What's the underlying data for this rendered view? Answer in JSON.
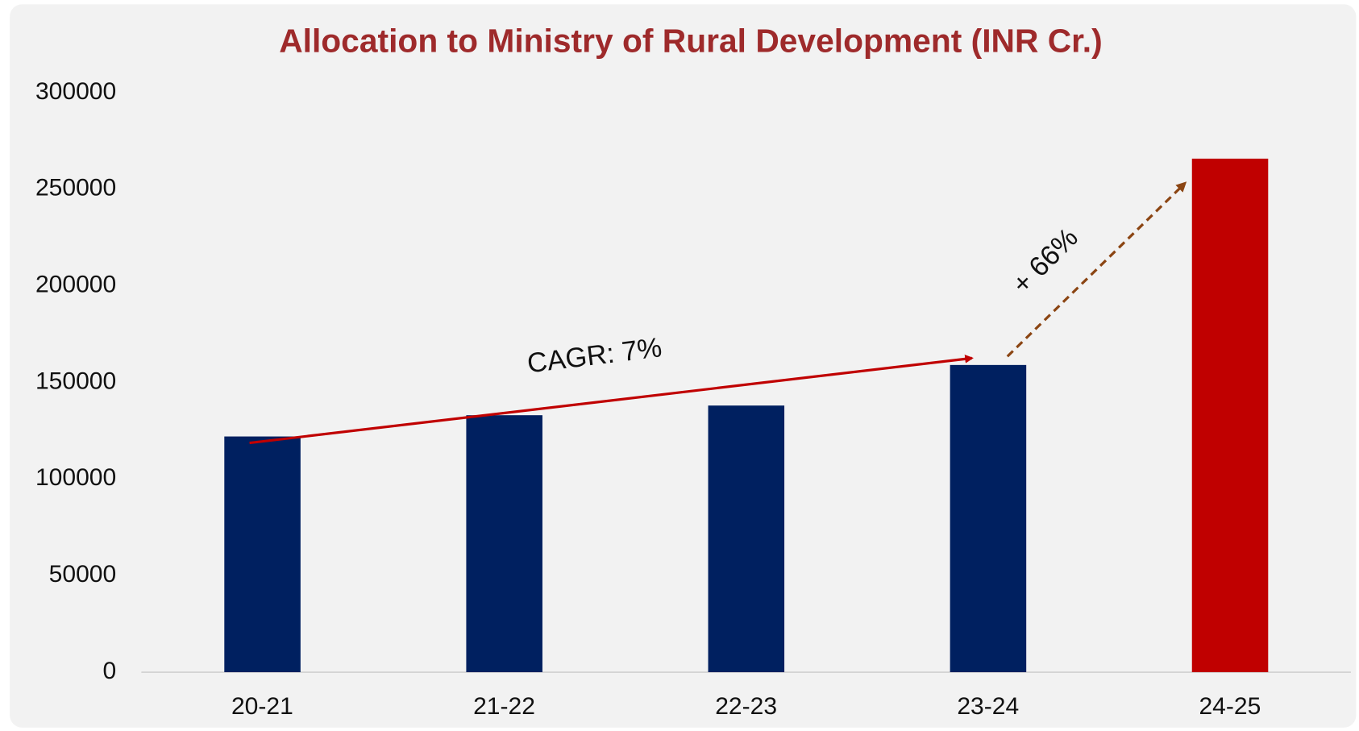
{
  "chart_data": {
    "type": "bar",
    "title": "Allocation to Ministry of Rural Development (INR Cr.)",
    "categories": [
      "20-21",
      "21-22",
      "22-23",
      "23-24",
      "24-25"
    ],
    "values": [
      122000,
      133000,
      138000,
      159000,
      265800
    ],
    "colors": [
      "#002060",
      "#002060",
      "#002060",
      "#002060",
      "#c00000"
    ],
    "ylim": [
      0,
      300000
    ],
    "yticks": [
      0,
      50000,
      100000,
      150000,
      200000,
      250000,
      300000
    ],
    "grid": false,
    "annotations": [
      "CAGR: 7%",
      "+ 66%"
    ]
  }
}
